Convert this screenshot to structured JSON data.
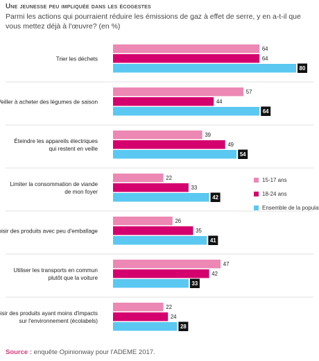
{
  "title": "Une jeunesse peu impliquée dans les écogestes",
  "subtitle": "Parmi les actions qui pourraient réduire les émissions de gaz à effet de serre, y en a-t-il que vous mettez déjà à l'œuvre? (en %)",
  "source": {
    "label": "Source :",
    "text": " enquête Opinionway pour l'ADEME 2017."
  },
  "colors": {
    "series_1": "#ec88b3",
    "series_2": "#d4006e",
    "series_3": "#5ac8f0",
    "value_box": "#111111",
    "separator": "#d6d6d6"
  },
  "chart_data": {
    "type": "bar",
    "orientation": "horizontal",
    "title": "Une jeunesse peu impliquée dans les écogestes",
    "subtitle": "Parmi les actions qui pourraient réduire les émissions de gaz à effet de serre, y en a-t-il que vous mettez déjà à l'œuvre? (en %)",
    "unit": "%",
    "categories": [
      [
        "Trier les déchets"
      ],
      [
        "Veiller à acheter des légumes de saison"
      ],
      [
        "Éteindre les appareils électriques",
        "qui restent en veille"
      ],
      [
        "Limiter la consommation de viande",
        "de mon foyer"
      ],
      [
        "Choisir des produits avec peu d'emballage"
      ],
      [
        "Utiliser les transports en commun",
        "plutôt que la voiture"
      ],
      [
        "Choisir des produits ayant moins d'impacts",
        "sur l'environnement (écolabels)"
      ]
    ],
    "series": [
      {
        "name": "15-17 ans",
        "values": [
          64,
          57,
          39,
          22,
          26,
          47,
          22
        ]
      },
      {
        "name": "18-24 ans",
        "values": [
          64,
          44,
          49,
          33,
          35,
          42,
          24
        ]
      },
      {
        "name": "Ensemble de la population",
        "values": [
          80,
          64,
          54,
          42,
          41,
          33,
          28
        ]
      }
    ],
    "xlim": [
      0,
      85
    ],
    "grid": false,
    "legend_position": "right"
  }
}
